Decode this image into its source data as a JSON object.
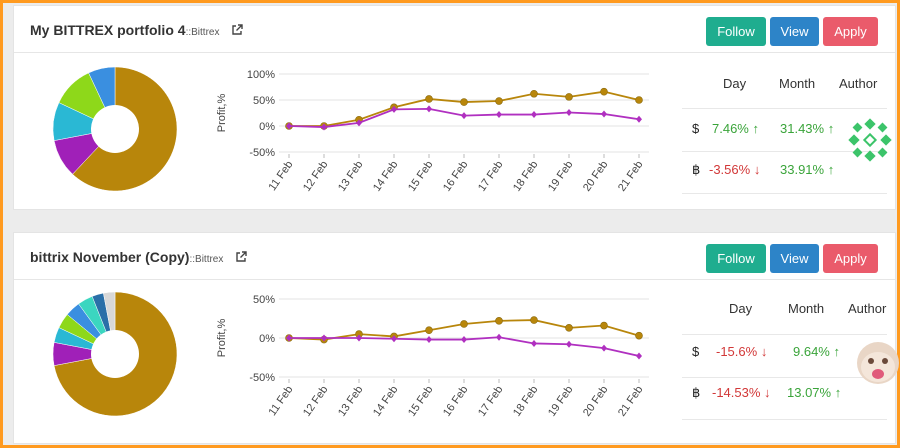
{
  "colors": {
    "follow": "#1fad8f",
    "view": "#2d84c8",
    "apply": "#ea5b6b",
    "positive": "#3aa43a",
    "negative": "#d23838",
    "series_btc": "#b8860b",
    "series_usd": "#b030c0"
  },
  "portfolios": [
    {
      "title": "My BITTREX portfolio 4",
      "exchange": "::Bittrex",
      "buttons": {
        "follow": "Follow",
        "view": "View",
        "apply": "Apply"
      },
      "stats": {
        "headers": {
          "day": "Day",
          "month": "Month",
          "author": "Author"
        },
        "rows": [
          {
            "symbol": "$",
            "day": "7.46%",
            "day_dir": "up",
            "month": "31.43%",
            "month_dir": "up"
          },
          {
            "symbol": "฿",
            "day": "-3.56%",
            "day_dir": "down",
            "month": "33.91%",
            "month_dir": "up"
          }
        ]
      },
      "pie_slices": [
        {
          "value": 62,
          "color": "#b8860b"
        },
        {
          "value": 10,
          "color": "#a020b8"
        },
        {
          "value": 10,
          "color": "#2ab8d4"
        },
        {
          "value": 11,
          "color": "#8ed81a"
        },
        {
          "value": 7,
          "color": "#3a8fe0"
        }
      ],
      "chart_data": {
        "type": "line",
        "x": [
          "11 Feb",
          "12 Feb",
          "13 Feb",
          "14 Feb",
          "15 Feb",
          "16 Feb",
          "17 Feb",
          "18 Feb",
          "19 Feb",
          "20 Feb",
          "21 Feb"
        ],
        "yticks": [
          "100%",
          "50%",
          "0%",
          "-50%"
        ],
        "ylim": [
          -50,
          100
        ],
        "ylabel": "Profit,%",
        "series": [
          {
            "color": "#b8860b",
            "values": [
              0,
              0,
              12,
              36,
              52,
              46,
              48,
              62,
              56,
              66,
              50
            ]
          },
          {
            "color": "#b030c0",
            "values": [
              0,
              -2,
              6,
              32,
              33,
              20,
              22,
              22,
              26,
              23,
              13
            ]
          }
        ]
      }
    },
    {
      "title": "bittrix November (Copy)",
      "exchange": "::Bittrex",
      "buttons": {
        "follow": "Follow",
        "view": "View",
        "apply": "Apply"
      },
      "stats": {
        "headers": {
          "day": "Day",
          "month": "Month",
          "author": "Author"
        },
        "rows": [
          {
            "symbol": "$",
            "day": "-15.6%",
            "day_dir": "down",
            "month": "9.64%",
            "month_dir": "up"
          },
          {
            "symbol": "฿",
            "day": "-14.53%",
            "day_dir": "down",
            "month": "13.07%",
            "month_dir": "up"
          }
        ]
      },
      "pie_slices": [
        {
          "value": 72,
          "color": "#b8860b"
        },
        {
          "value": 6,
          "color": "#a020b8"
        },
        {
          "value": 4,
          "color": "#2ab8d4"
        },
        {
          "value": 4,
          "color": "#8ed81a"
        },
        {
          "value": 4,
          "color": "#3a8fe0"
        },
        {
          "value": 4,
          "color": "#3bd6c0"
        },
        {
          "value": 3,
          "color": "#2a6fa8"
        },
        {
          "value": 3,
          "color": "#d8d8d8"
        }
      ],
      "chart_data": {
        "type": "line",
        "x": [
          "11 Feb",
          "12 Feb",
          "13 Feb",
          "14 Feb",
          "15 Feb",
          "16 Feb",
          "17 Feb",
          "18 Feb",
          "19 Feb",
          "20 Feb",
          "21 Feb"
        ],
        "yticks": [
          "50%",
          "0%",
          "-50%"
        ],
        "ylim": [
          -50,
          50
        ],
        "ylabel": "Profit,%",
        "series": [
          {
            "color": "#b8860b",
            "values": [
              0,
              -2,
              5,
              2,
              10,
              18,
              22,
              23,
              13,
              16,
              3
            ]
          },
          {
            "color": "#b030c0",
            "values": [
              0,
              0,
              0,
              -1,
              -2,
              -2,
              1,
              -7,
              -8,
              -13,
              -23
            ]
          }
        ]
      }
    }
  ]
}
